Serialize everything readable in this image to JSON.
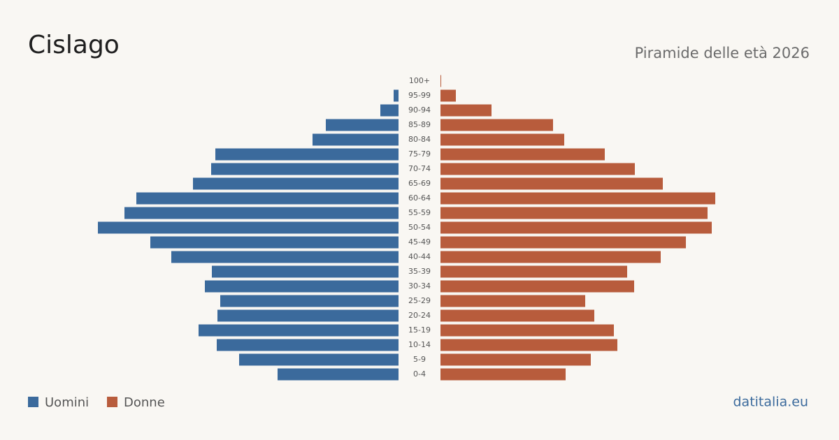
{
  "chart_data": {
    "type": "pyramid",
    "title": "Cislago",
    "subtitle": "Piramide delle età 2026",
    "source": "datitalia.eu",
    "categories": [
      "100+",
      "95-99",
      "90-94",
      "85-89",
      "80-84",
      "75-79",
      "70-74",
      "65-69",
      "60-64",
      "55-59",
      "50-54",
      "45-49",
      "40-44",
      "35-39",
      "30-34",
      "25-29",
      "20-24",
      "15-19",
      "10-14",
      "5-9",
      "0-4"
    ],
    "series": [
      {
        "name": "Uomini",
        "color": "#3b6a9c",
        "values": [
          0,
          7,
          26,
          104,
          123,
          262,
          268,
          294,
          375,
          392,
          430,
          355,
          325,
          267,
          277,
          255,
          259,
          286,
          260,
          228,
          173
        ]
      },
      {
        "name": "Donne",
        "color": "#b85c3c",
        "values": [
          1,
          22,
          73,
          161,
          177,
          235,
          278,
          318,
          393,
          382,
          388,
          351,
          315,
          267,
          277,
          207,
          220,
          248,
          253,
          215,
          179
        ]
      }
    ]
  }
}
